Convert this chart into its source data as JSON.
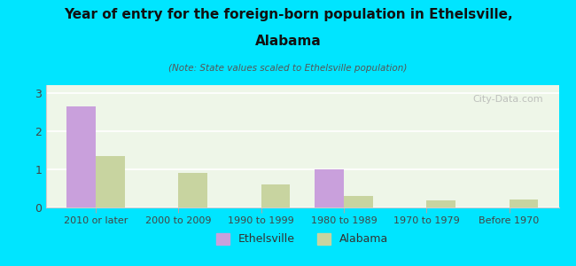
{
  "title_line1": "Year of entry for the foreign-born population in Ethelsville,",
  "title_line2": "Alabama",
  "subtitle": "(Note: State values scaled to Ethelsville population)",
  "categories": [
    "2010 or later",
    "2000 to 2009",
    "1990 to 1999",
    "1980 to 1989",
    "1970 to 1979",
    "Before 1970"
  ],
  "ethelsville_values": [
    2.65,
    0,
    0,
    1.0,
    0,
    0
  ],
  "alabama_values": [
    1.35,
    0.9,
    0.6,
    0.3,
    0.18,
    0.22
  ],
  "ethelsville_color": "#c9a0dc",
  "alabama_color": "#c8d4a0",
  "background_color": "#00e5ff",
  "plot_bg_color_top": "#f5fff5",
  "plot_bg_color_bottom": "#e8f4e8",
  "ylim": [
    0,
    3.2
  ],
  "yticks": [
    0,
    1,
    2,
    3
  ],
  "bar_width": 0.35,
  "watermark": "City-Data.com",
  "legend_ethelsville": "Ethelsville",
  "legend_alabama": "Alabama"
}
